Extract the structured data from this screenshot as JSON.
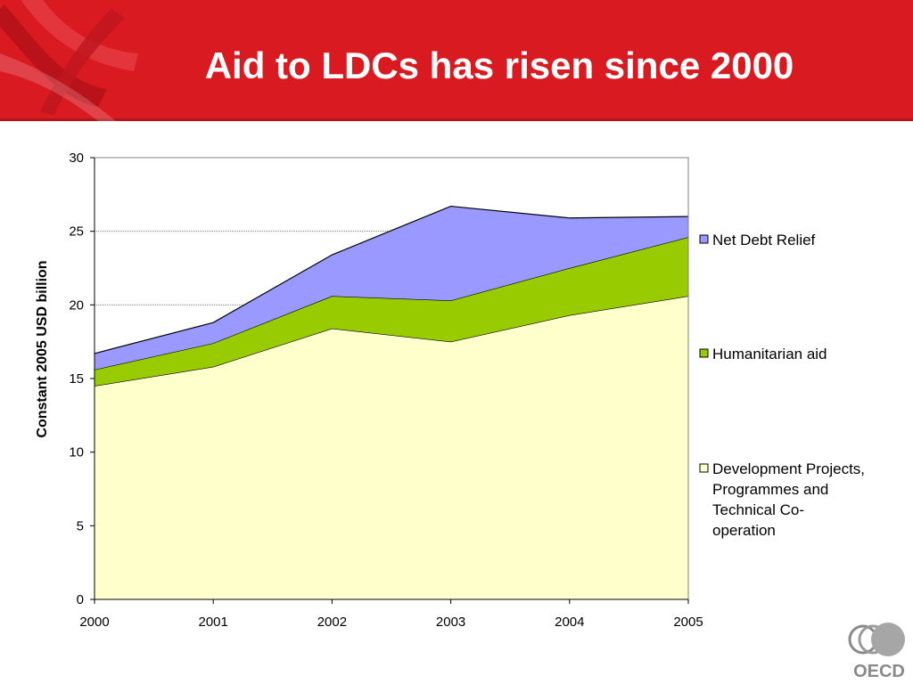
{
  "slide": {
    "title": "Aid to LDCs has risen since 2000"
  },
  "logo": {
    "text": "OECD"
  },
  "chart_data": {
    "type": "area",
    "stacked": true,
    "x": [
      "2000",
      "2001",
      "2002",
      "2003",
      "2004",
      "2005"
    ],
    "series": [
      {
        "name": "Development Projects, Programmes and Technical Co-operation",
        "values": [
          14.5,
          15.8,
          18.4,
          17.5,
          19.3,
          20.6
        ],
        "color": "#ffffcc"
      },
      {
        "name": "Humanitarian aid",
        "values": [
          1.1,
          1.6,
          2.2,
          2.8,
          3.2,
          4.0
        ],
        "color": "#99cc00"
      },
      {
        "name": "Net Debt Relief",
        "values": [
          1.1,
          1.4,
          2.8,
          6.4,
          3.4,
          1.4
        ],
        "color": "#9999ff"
      }
    ],
    "ylabel": "Constant 2005 USD billion",
    "xlabel": "",
    "ylim": [
      0,
      30
    ],
    "yticks": [
      "0",
      "5",
      "10",
      "15",
      "20",
      "25",
      "30"
    ],
    "grid": true,
    "legend_position": "right",
    "legend_order": [
      2,
      1,
      0
    ],
    "legend_lines": [
      [
        "Net Debt Relief"
      ],
      [
        "Humanitarian aid"
      ],
      [
        "Development Projects,",
        "Programmes and",
        "Technical Co-",
        "operation"
      ]
    ]
  }
}
